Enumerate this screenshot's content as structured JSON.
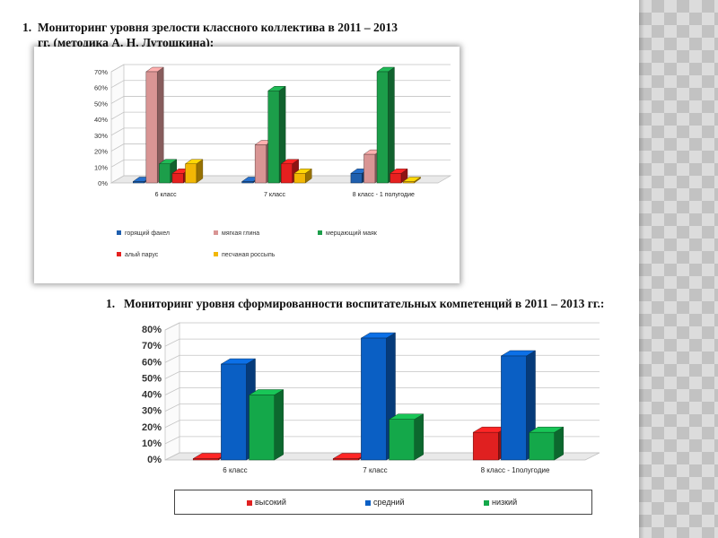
{
  "heading1": {
    "number": "1.",
    "text": "Мониторинг уровня зрелости классного коллектива в 2011 – 2013 гг. (методика А. Н. Лутошкина):"
  },
  "heading2": {
    "number": "1.",
    "text": "Мониторинг уровня сформированности воспитательных компетенций в 2011 – 2013 гг.:"
  },
  "chart_data": [
    {
      "type": "bar",
      "title": "",
      "xlabel": "",
      "ylabel": "",
      "ylim": [
        0,
        70
      ],
      "yticks": [
        "0%",
        "10%",
        "20%",
        "30%",
        "40%",
        "50%",
        "60%",
        "70%"
      ],
      "grid": true,
      "legend_position": "bottom",
      "categories": [
        "6 класс",
        "7 класс",
        "8 класс - 1 полугодие"
      ],
      "series": [
        {
          "name": "горящий факел",
          "color": "#1f5fae",
          "values": [
            0,
            0,
            6
          ]
        },
        {
          "name": "мягкая глина",
          "color": "#d99594",
          "values": [
            70,
            24,
            18
          ]
        },
        {
          "name": "мерцающий маяк",
          "color": "#1c9e4a",
          "values": [
            12,
            58,
            70
          ]
        },
        {
          "name": "алый парус",
          "color": "#e5201f",
          "values": [
            6,
            12,
            6
          ]
        },
        {
          "name": "песчаная россыпь",
          "color": "#f2b705",
          "values": [
            12,
            6,
            0
          ]
        }
      ]
    },
    {
      "type": "bar",
      "title": "",
      "xlabel": "",
      "ylabel": "",
      "ylim": [
        0,
        80
      ],
      "yticks": [
        "0%",
        "10%",
        "20%",
        "30%",
        "40%",
        "50%",
        "60%",
        "70%",
        "80%"
      ],
      "grid": true,
      "legend_position": "bottom",
      "categories": [
        "6 класс",
        "7 класс",
        "8 класс - 1полугодие"
      ],
      "series": [
        {
          "name": "высокий",
          "color": "#e02020",
          "values": [
            0,
            0,
            17
          ]
        },
        {
          "name": "средний",
          "color": "#0a5fc4",
          "values": [
            59,
            75,
            64
          ]
        },
        {
          "name": "низкий",
          "color": "#14a84a",
          "values": [
            40,
            25,
            17
          ]
        }
      ]
    }
  ]
}
